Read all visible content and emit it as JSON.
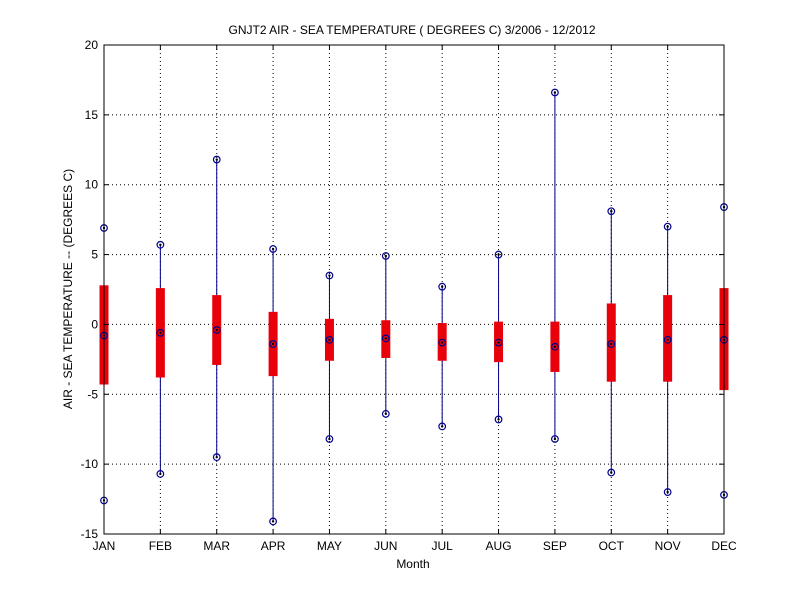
{
  "chart_data": {
    "type": "boxplot",
    "title": "GNJT2  AIR - SEA TEMPERATURE ( DEGREES C) 3/2006 - 12/2012",
    "xlabel": "Month",
    "ylabel": "AIR - SEA TEMPERATURE -- (DEGREES C)",
    "ylim": [
      -15,
      20
    ],
    "yticks": [
      -15,
      -10,
      -5,
      0,
      5,
      10,
      15,
      20
    ],
    "ytick_labels": [
      "-15",
      "-10",
      "-5",
      "0",
      "5",
      "10",
      "15",
      "20"
    ],
    "grid": true,
    "categories": [
      "JAN",
      "FEB",
      "MAR",
      "APR",
      "MAY",
      "JUN",
      "JUL",
      "AUG",
      "SEP",
      "OCT",
      "NOV",
      "DEC"
    ],
    "min": [
      -12.6,
      -10.7,
      -9.5,
      -14.1,
      -8.2,
      -6.4,
      -7.3,
      -6.8,
      -8.2,
      -10.6,
      -12.0,
      -12.2
    ],
    "q1": [
      -4.3,
      -3.8,
      -2.9,
      -3.7,
      -2.6,
      -2.4,
      -2.6,
      -2.7,
      -3.4,
      -4.1,
      -4.1,
      -4.7
    ],
    "median": [
      -0.8,
      -0.6,
      -0.4,
      -1.4,
      -1.1,
      -1.0,
      -1.3,
      -1.3,
      -1.6,
      -1.4,
      -1.1,
      -1.1
    ],
    "q3": [
      2.8,
      2.6,
      2.1,
      0.9,
      0.4,
      0.3,
      0.1,
      0.2,
      0.2,
      1.5,
      2.1,
      2.6
    ],
    "max": [
      6.9,
      5.7,
      11.8,
      5.4,
      3.5,
      4.9,
      2.7,
      5.0,
      16.6,
      8.1,
      7.0,
      8.4
    ],
    "colors": {
      "box": "#e8000b",
      "whisker": "#00008b",
      "marker": "#00008b",
      "grid": "#000000"
    }
  }
}
